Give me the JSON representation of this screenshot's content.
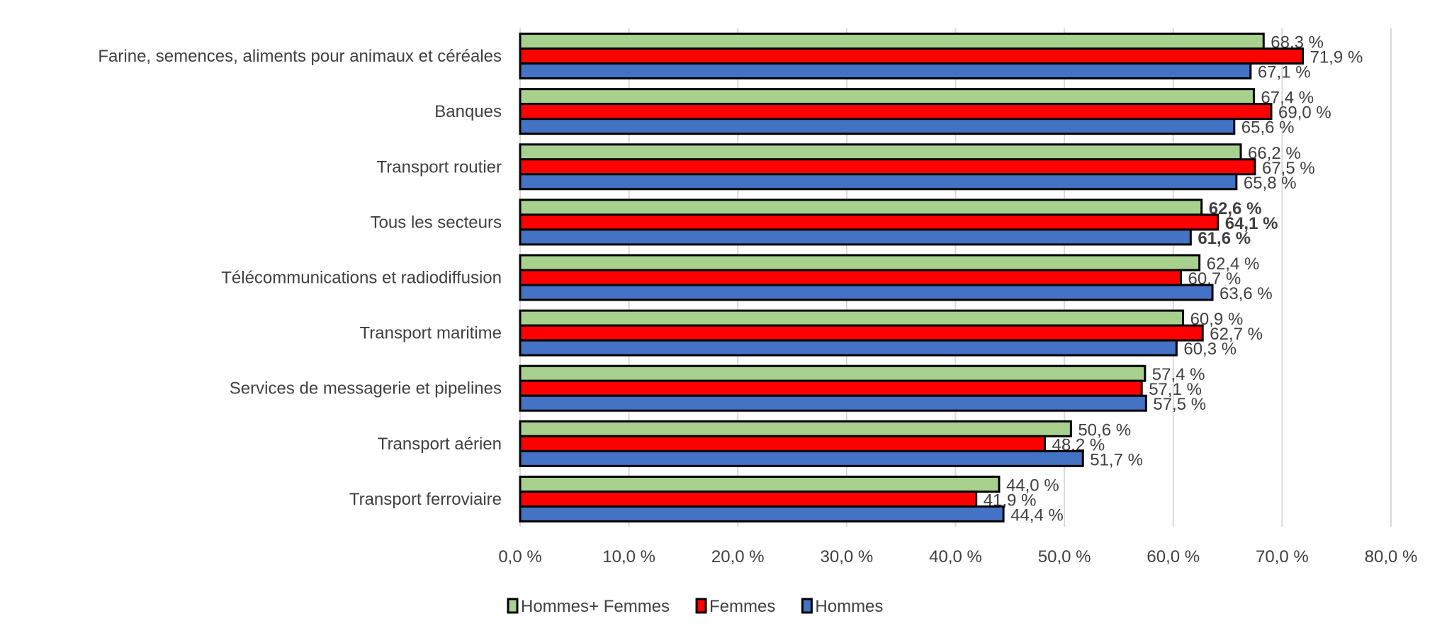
{
  "chart_data": {
    "type": "bar",
    "orientation": "horizontal",
    "title": "",
    "xlabel": "",
    "ylabel": "",
    "xlim": [
      0,
      80
    ],
    "x_ticks": [
      "0,0 %",
      "10,0 %",
      "20,0 %",
      "30,0 %",
      "40,0 %",
      "50,0 %",
      "60,0 %",
      "70,0 %",
      "80,0 %"
    ],
    "grid": true,
    "legend_position": "bottom",
    "categories": [
      "Farine, semences, aliments pour animaux et céréales",
      "Banques",
      "Transport routier",
      "Tous les secteurs",
      "Télécommunications et radiodiffusion",
      "Transport maritime",
      "Services de messagerie et pipelines",
      "Transport aérien",
      "Transport ferroviaire"
    ],
    "bold_category": "Tous les secteurs",
    "series": [
      {
        "name": "Hommes+ Femmes",
        "color": "#A9D18E",
        "values": [
          68.3,
          67.4,
          66.2,
          62.6,
          62.4,
          60.9,
          57.4,
          50.6,
          44.0
        ],
        "labels": [
          "68,3 %",
          "67,4 %",
          "66,2 %",
          "62,6 %",
          "62,4 %",
          "60,9 %",
          "57,4 %",
          "50,6 %",
          "44,0 %"
        ]
      },
      {
        "name": "Femmes",
        "color": "#FF0000",
        "values": [
          71.9,
          69.0,
          67.5,
          64.1,
          60.7,
          62.7,
          57.1,
          48.2,
          41.9
        ],
        "labels": [
          "71,9 %",
          "69,0 %",
          "67,5 %",
          "64,1 %",
          "60,7 %",
          "62,7 %",
          "57,1 %",
          "48,2 %",
          "41,9 %"
        ]
      },
      {
        "name": "Hommes",
        "color": "#4472C4",
        "values": [
          67.1,
          65.6,
          65.8,
          61.6,
          63.6,
          60.3,
          57.5,
          51.7,
          44.4
        ],
        "labels": [
          "67,1 %",
          "65,6 %",
          "65,8 %",
          "61,6 %",
          "63,6 %",
          "60,3 %",
          "57,5 %",
          "51,7 %",
          "44,4 %"
        ]
      }
    ]
  }
}
